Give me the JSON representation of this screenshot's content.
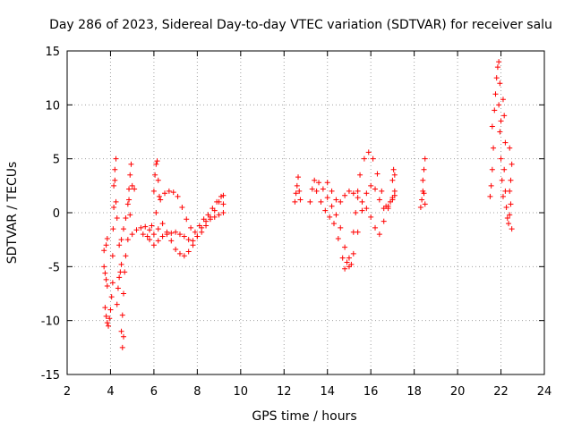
{
  "chart_data": {
    "type": "scatter",
    "title": "Day 286 of 2023, Sidereal Day-to-day VTEC variation (SDTVAR) for receiver salu",
    "xlabel": "GPS time / hours",
    "ylabel": "SDTVAR / TECUs",
    "xlim": [
      2,
      24
    ],
    "ylim": [
      -15,
      15
    ],
    "xticks": [
      "2",
      "4",
      "6",
      "8",
      "10",
      "12",
      "14",
      "16",
      "18",
      "20",
      "22",
      "24"
    ],
    "yticks": [
      "-15",
      "-10",
      "-5",
      "0",
      "5",
      "10",
      "15"
    ],
    "grid": true,
    "marker": "+",
    "color": "#ff0000",
    "series": [
      {
        "name": "SDTVAR",
        "points": [
          [
            3.7,
            -5.0
          ],
          [
            3.75,
            -5.6
          ],
          [
            3.8,
            -6.2
          ],
          [
            3.85,
            -6.8
          ],
          [
            3.75,
            -8.8
          ],
          [
            3.8,
            -9.6
          ],
          [
            3.85,
            -10.2
          ],
          [
            3.9,
            -10.5
          ],
          [
            3.95,
            -9.8
          ],
          [
            3.7,
            -3.5
          ],
          [
            3.8,
            -3.0
          ],
          [
            3.85,
            -2.4
          ],
          [
            4.0,
            -9.0
          ],
          [
            4.05,
            -7.8
          ],
          [
            4.1,
            -6.5
          ],
          [
            4.1,
            -4.0
          ],
          [
            4.12,
            -1.5
          ],
          [
            4.15,
            0.5
          ],
          [
            4.15,
            2.5
          ],
          [
            4.2,
            4.0
          ],
          [
            4.25,
            5.0
          ],
          [
            4.2,
            3.0
          ],
          [
            4.25,
            1.0
          ],
          [
            4.3,
            -0.5
          ],
          [
            4.3,
            -8.5
          ],
          [
            4.35,
            -7.0
          ],
          [
            4.4,
            -6.0
          ],
          [
            4.45,
            -5.5
          ],
          [
            4.5,
            -4.8
          ],
          [
            4.5,
            -11.0
          ],
          [
            4.55,
            -12.5
          ],
          [
            4.6,
            -11.5
          ],
          [
            4.55,
            -9.5
          ],
          [
            4.6,
            -7.5
          ],
          [
            4.65,
            -5.5
          ],
          [
            4.7,
            -4.0
          ],
          [
            4.4,
            -3.0
          ],
          [
            4.5,
            -2.5
          ],
          [
            4.6,
            -1.5
          ],
          [
            4.7,
            -0.5
          ],
          [
            4.8,
            0.8
          ],
          [
            4.85,
            2.2
          ],
          [
            4.9,
            3.5
          ],
          [
            4.95,
            4.5
          ],
          [
            4.85,
            1.2
          ],
          [
            4.9,
            -0.2
          ],
          [
            5.0,
            2.5
          ],
          [
            5.1,
            2.2
          ],
          [
            4.8,
            -2.5
          ],
          [
            5.0,
            -2.0
          ],
          [
            5.2,
            -1.6
          ],
          [
            5.4,
            -1.4
          ],
          [
            5.6,
            -1.3
          ],
          [
            5.8,
            -1.6
          ],
          [
            6.0,
            -2.0
          ],
          [
            6.2,
            -1.5
          ],
          [
            6.4,
            -1.0
          ],
          [
            6.6,
            -1.8
          ],
          [
            6.8,
            -2.6
          ],
          [
            7.0,
            -3.4
          ],
          [
            7.2,
            -3.8
          ],
          [
            7.4,
            -4.0
          ],
          [
            7.6,
            -3.6
          ],
          [
            7.8,
            -3.0
          ],
          [
            8.0,
            -2.2
          ],
          [
            8.2,
            -1.4
          ],
          [
            8.4,
            -0.8
          ],
          [
            8.6,
            -0.4
          ],
          [
            8.8,
            0.2
          ],
          [
            9.0,
            1.0
          ],
          [
            9.2,
            1.6
          ],
          [
            5.5,
            -2.0
          ],
          [
            5.7,
            -2.2
          ],
          [
            5.9,
            -1.2
          ],
          [
            6.1,
            0.0
          ],
          [
            6.3,
            1.2
          ],
          [
            6.5,
            1.8
          ],
          [
            6.7,
            2.0
          ],
          [
            6.9,
            1.9
          ],
          [
            7.1,
            1.5
          ],
          [
            7.3,
            0.5
          ],
          [
            7.5,
            -0.6
          ],
          [
            7.7,
            -1.4
          ],
          [
            7.9,
            -1.8
          ],
          [
            8.1,
            -1.2
          ],
          [
            8.3,
            -0.6
          ],
          [
            8.5,
            -0.2
          ],
          [
            8.7,
            0.4
          ],
          [
            8.9,
            1.0
          ],
          [
            9.1,
            1.5
          ],
          [
            9.2,
            0.8
          ],
          [
            5.8,
            -2.5
          ],
          [
            6.0,
            -3.0
          ],
          [
            6.2,
            -2.6
          ],
          [
            6.4,
            -2.2
          ],
          [
            6.6,
            -2.0
          ],
          [
            6.8,
            -1.9
          ],
          [
            7.0,
            -1.8
          ],
          [
            7.2,
            -2.0
          ],
          [
            7.4,
            -2.2
          ],
          [
            7.6,
            -2.5
          ],
          [
            7.8,
            -2.6
          ],
          [
            8.0,
            -2.2
          ],
          [
            8.2,
            -1.8
          ],
          [
            8.4,
            -1.2
          ],
          [
            8.6,
            -0.6
          ],
          [
            8.8,
            -0.4
          ],
          [
            9.0,
            -0.2
          ],
          [
            9.2,
            0.0
          ],
          [
            6.0,
            2.0
          ],
          [
            6.05,
            3.5
          ],
          [
            6.1,
            4.5
          ],
          [
            6.15,
            4.8
          ],
          [
            6.2,
            3.0
          ],
          [
            6.25,
            1.5
          ],
          [
            12.5,
            1.0
          ],
          [
            12.55,
            1.8
          ],
          [
            12.6,
            2.5
          ],
          [
            12.65,
            3.3
          ],
          [
            12.7,
            2.0
          ],
          [
            12.75,
            1.2
          ],
          [
            13.2,
            1.0
          ],
          [
            13.3,
            2.2
          ],
          [
            13.4,
            3.0
          ],
          [
            13.6,
            2.8
          ],
          [
            13.8,
            2.2
          ],
          [
            14.0,
            1.4
          ],
          [
            14.2,
            0.6
          ],
          [
            14.4,
            -0.2
          ],
          [
            14.6,
            -1.4
          ],
          [
            14.8,
            -3.2
          ],
          [
            14.9,
            -4.6
          ],
          [
            15.0,
            -5.0
          ],
          [
            15.1,
            -4.8
          ],
          [
            15.2,
            -3.8
          ],
          [
            15.4,
            -1.8
          ],
          [
            15.6,
            0.2
          ],
          [
            15.8,
            1.8
          ],
          [
            16.0,
            2.5
          ],
          [
            16.2,
            2.2
          ],
          [
            16.4,
            1.2
          ],
          [
            16.6,
            0.4
          ],
          [
            16.8,
            0.6
          ],
          [
            17.0,
            1.4
          ],
          [
            17.1,
            2.0
          ],
          [
            13.5,
            2.0
          ],
          [
            13.7,
            1.0
          ],
          [
            13.9,
            0.2
          ],
          [
            14.1,
            -0.4
          ],
          [
            14.3,
            -1.0
          ],
          [
            14.5,
            -2.4
          ],
          [
            14.7,
            -4.2
          ],
          [
            14.8,
            -5.2
          ],
          [
            15.0,
            -4.2
          ],
          [
            15.2,
            -1.8
          ],
          [
            15.3,
            0.0
          ],
          [
            15.4,
            2.0
          ],
          [
            15.5,
            3.5
          ],
          [
            15.7,
            5.0
          ],
          [
            15.9,
            5.6
          ],
          [
            16.1,
            5.0
          ],
          [
            16.3,
            3.6
          ],
          [
            16.5,
            2.0
          ],
          [
            16.7,
            0.6
          ],
          [
            16.9,
            1.0
          ],
          [
            17.1,
            1.6
          ],
          [
            14.0,
            2.8
          ],
          [
            14.2,
            2.0
          ],
          [
            14.4,
            1.2
          ],
          [
            14.6,
            1.0
          ],
          [
            14.8,
            1.6
          ],
          [
            15.0,
            2.0
          ],
          [
            15.2,
            1.8
          ],
          [
            15.4,
            1.4
          ],
          [
            15.6,
            1.0
          ],
          [
            15.8,
            0.4
          ],
          [
            16.0,
            -0.4
          ],
          [
            16.2,
            -1.4
          ],
          [
            16.4,
            -2.0
          ],
          [
            16.6,
            -0.8
          ],
          [
            16.8,
            0.4
          ],
          [
            17.0,
            1.2
          ],
          [
            17.0,
            3.0
          ],
          [
            17.05,
            4.0
          ],
          [
            17.1,
            3.5
          ],
          [
            18.3,
            0.5
          ],
          [
            18.35,
            1.2
          ],
          [
            18.4,
            2.0
          ],
          [
            18.4,
            3.0
          ],
          [
            18.45,
            4.0
          ],
          [
            18.5,
            5.0
          ],
          [
            18.45,
            1.8
          ],
          [
            18.5,
            0.8
          ],
          [
            21.5,
            1.5
          ],
          [
            21.55,
            2.5
          ],
          [
            21.6,
            4.0
          ],
          [
            21.65,
            6.0
          ],
          [
            21.6,
            8.0
          ],
          [
            21.7,
            9.5
          ],
          [
            21.75,
            11.0
          ],
          [
            21.8,
            12.5
          ],
          [
            21.85,
            13.5
          ],
          [
            21.9,
            14.0
          ],
          [
            21.95,
            12.0
          ],
          [
            21.9,
            10.0
          ],
          [
            21.95,
            7.5
          ],
          [
            22.0,
            5.0
          ],
          [
            22.05,
            3.0
          ],
          [
            22.1,
            1.5
          ],
          [
            22.0,
            8.5
          ],
          [
            22.1,
            10.5
          ],
          [
            22.15,
            9.0
          ],
          [
            22.2,
            6.5
          ],
          [
            22.15,
            4.0
          ],
          [
            22.2,
            2.0
          ],
          [
            22.25,
            0.5
          ],
          [
            22.3,
            -0.5
          ],
          [
            22.35,
            -1.0
          ],
          [
            22.4,
            -0.2
          ],
          [
            22.45,
            0.8
          ],
          [
            22.5,
            -1.5
          ],
          [
            22.4,
            6.0
          ],
          [
            22.5,
            4.5
          ],
          [
            22.45,
            3.0
          ],
          [
            22.4,
            2.0
          ]
        ]
      }
    ]
  }
}
